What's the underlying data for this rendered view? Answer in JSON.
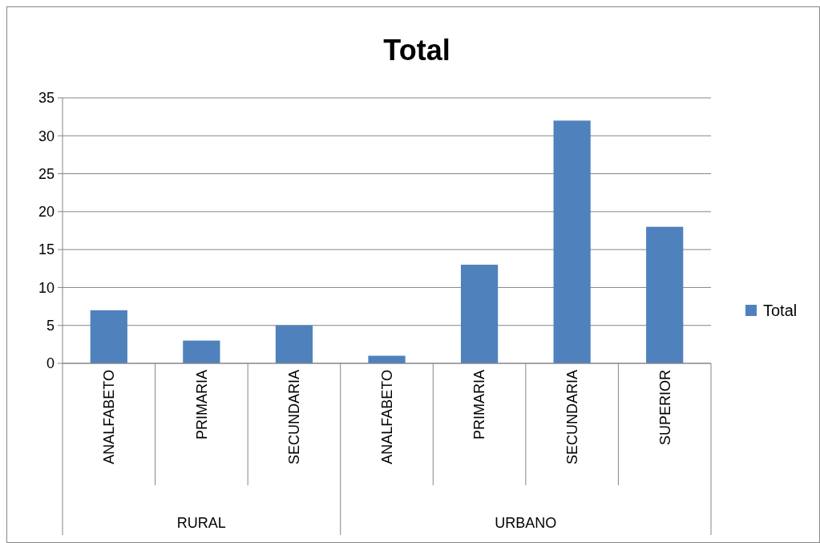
{
  "chart_data": {
    "type": "bar",
    "title": "Total",
    "categories": [
      "ANALFABETO",
      "PRIMARIA",
      "SECUNDARIA",
      "ANALFABETO",
      "PRIMARIA",
      "SECUNDARIA",
      "SUPERIOR"
    ],
    "series": [
      {
        "name": "Total",
        "color": "#4f81bd",
        "values": [
          7,
          3,
          5,
          1,
          13,
          32,
          18
        ]
      }
    ],
    "ylim": [
      0,
      35
    ],
    "yticks": [
      0,
      5,
      10,
      15,
      20,
      25,
      30,
      35
    ],
    "grid": "y",
    "legend": "right",
    "annotations": [
      "RURAL",
      "URBANO"
    ]
  }
}
